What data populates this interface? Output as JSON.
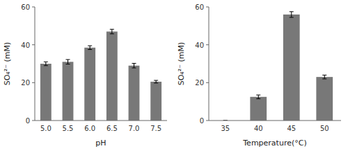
{
  "chart_data": [
    {
      "type": "bar",
      "categories": [
        "5.0",
        "5.5",
        "6.0",
        "6.5",
        "7.0",
        "7.5"
      ],
      "values": [
        30.0,
        31.0,
        38.5,
        47.0,
        29.0,
        20.5
      ],
      "errors": [
        1.0,
        1.2,
        1.0,
        1.2,
        1.2,
        0.7
      ],
      "xlabel": "pH",
      "ylabel": "SO₄²⁻ (mM)",
      "ylim": [
        0,
        60
      ],
      "yticks": [
        0,
        20,
        40,
        60
      ],
      "color": "#787878"
    },
    {
      "type": "bar",
      "categories": [
        "35",
        "40",
        "45",
        "50"
      ],
      "values": [
        0,
        12.5,
        56.0,
        23.0
      ],
      "errors": [
        0,
        1.0,
        1.5,
        1.0
      ],
      "xlabel": "Temperature(°C)",
      "ylabel": "SO₄²⁻ (mM)",
      "ylim": [
        0,
        60
      ],
      "yticks": [
        0,
        20,
        40,
        60
      ],
      "color": "#787878"
    }
  ]
}
